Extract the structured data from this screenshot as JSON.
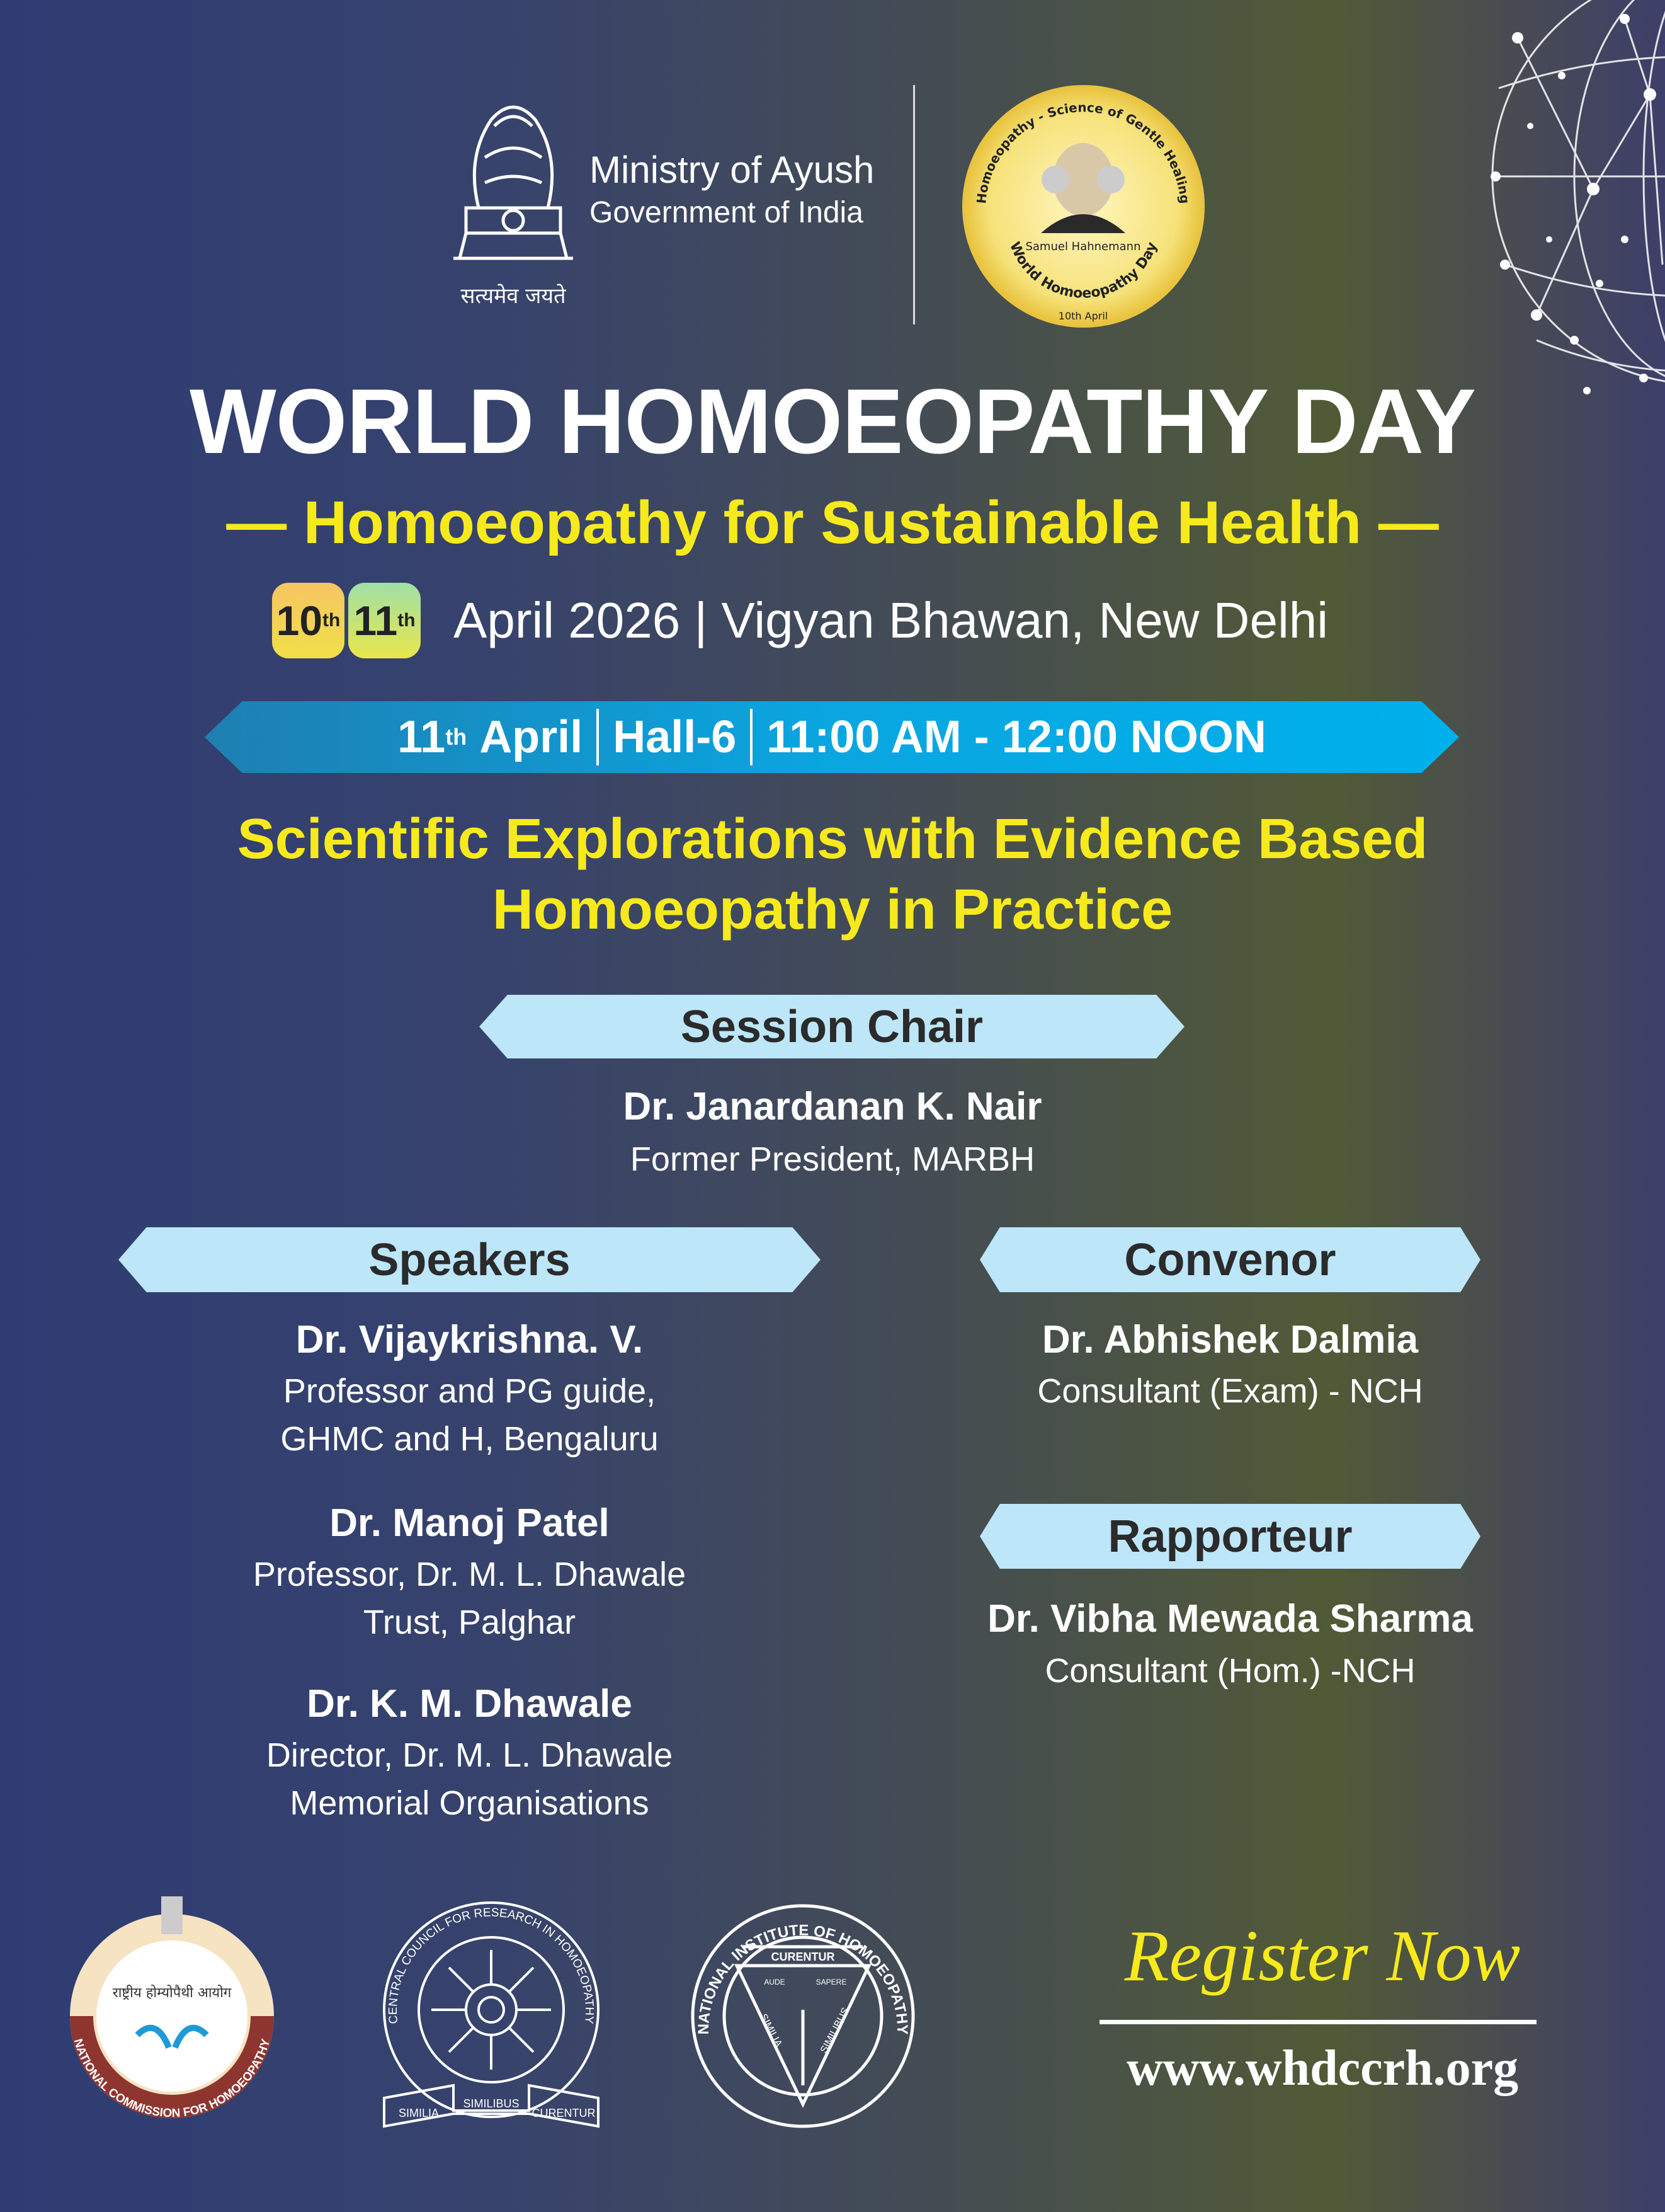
{
  "header": {
    "ministry": "Ministry of Ayush",
    "government": "Government of India",
    "emblem_motto": "सत्यमेव जयते",
    "medal": {
      "top_text": "Homoeopathy - Science of Gentle Healing",
      "name": "Samuel Hahnemann",
      "bottom_text": "World Homoeopathy Day",
      "date": "10th April"
    }
  },
  "title": "WORLD HOMOEOPATHY DAY",
  "subtitle": "— Homoeopathy for Sustainable Health —",
  "dates": {
    "day1": "10",
    "day1_sup": "th",
    "day2": "11",
    "day2_sup": "th",
    "text": "April 2026 | Vigyan Bhawan, New Delhi"
  },
  "session_banner": {
    "day": "11",
    "sup": "th",
    "month": "April",
    "hall": "Hall-6",
    "time": "11:00 AM - 12:00 NOON"
  },
  "session_title": [
    "Scientific Explorations with Evidence Based",
    "Homoeopathy in Practice"
  ],
  "chair": {
    "heading": "Session Chair",
    "name": "Dr. Janardanan K. Nair",
    "role": "Former President, MARBH"
  },
  "speakers": {
    "heading": "Speakers",
    "items": [
      {
        "name": "Dr. Vijaykrishna. V.",
        "role1": "Professor and PG guide,",
        "role2": "GHMC and H, Bengaluru"
      },
      {
        "name": "Dr. Manoj Patel",
        "role1": "Professor, Dr. M. L. Dhawale",
        "role2": "Trust, Palghar"
      },
      {
        "name": "Dr. K. M. Dhawale",
        "role1": "Director, Dr. M. L. Dhawale",
        "role2": "Memorial Organisations"
      }
    ]
  },
  "convenor": {
    "heading": "Convenor",
    "name": "Dr. Abhishek Dalmia",
    "role": "Consultant (Exam) - NCH"
  },
  "rapporteur": {
    "heading": "Rapporteur",
    "name": "Dr. Vibha Mewada Sharma",
    "role": "Consultant (Hom.) -NCH"
  },
  "logos": {
    "nch": {
      "hindi": "राष्ट्रीय होम्योपैथी आयोग",
      "ring": "NATIONAL COMMISSION FOR HOMOEOPATHY"
    },
    "ccrh": {
      "ring": "CENTRAL COUNCIL FOR RESEARCH IN HOMOEOPATHY",
      "ribbon": [
        "SIMILIA",
        "SIMILIBUS",
        "CURENTUR"
      ]
    },
    "nih": {
      "ring": "NATIONAL INSTITUTE OF HOMOEOPATHY",
      "top": "CURENTUR",
      "left": "SIMILIA",
      "right": "SIMILIBUS",
      "aude": "AUDE",
      "sapere": "SAPERE"
    }
  },
  "register": {
    "label": "Register Now",
    "url": "www.whdccrh.org"
  },
  "colors": {
    "yellow": "#f7ea1c",
    "banner_blue": "#00aeea",
    "label_blue": "#bde6f9",
    "background_left": "#2f3c74",
    "background_right": "#515a36"
  }
}
